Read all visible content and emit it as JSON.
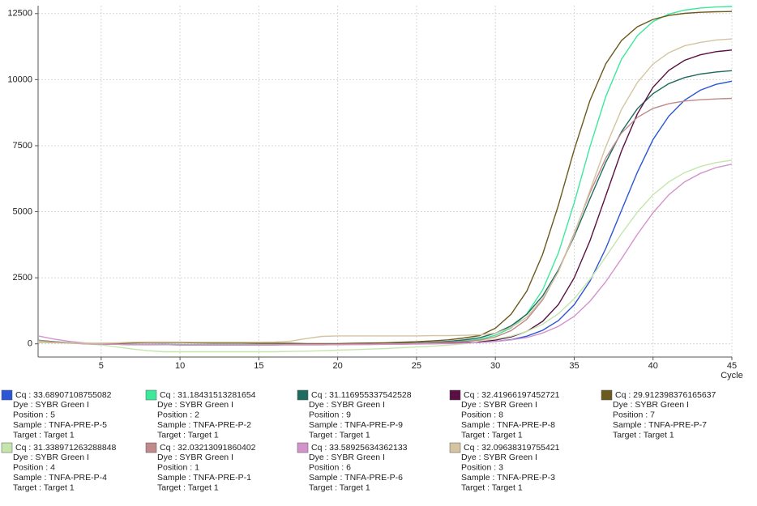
{
  "chart_data": {
    "type": "line",
    "x_label": "Cycle",
    "x": [
      1,
      2,
      3,
      4,
      5,
      6,
      7,
      8,
      9,
      10,
      11,
      12,
      13,
      14,
      15,
      16,
      17,
      18,
      19,
      20,
      21,
      22,
      23,
      24,
      25,
      26,
      27,
      28,
      29,
      30,
      31,
      32,
      33,
      34,
      35,
      36,
      37,
      38,
      39,
      40,
      41,
      42,
      43,
      44,
      45
    ],
    "xlim": [
      1,
      45
    ],
    "xticks": [
      5,
      10,
      15,
      20,
      25,
      30,
      35,
      40,
      45
    ],
    "ylim": [
      -500,
      12800
    ],
    "yticks": [
      0,
      2500,
      5000,
      7500,
      10000,
      12500
    ],
    "grid": true,
    "series": [
      {
        "name": "Cq : 33.68907108755082",
        "dye": "Dye : SYBR Green I",
        "position": "Position : 5",
        "sample": "Sample : TNFA-PRE-P-5",
        "target": "Target : Target 1",
        "color": "#2a56d6",
        "values": [
          120,
          70,
          30,
          10,
          0,
          -10,
          -20,
          -20,
          -30,
          -30,
          -30,
          -30,
          -30,
          -30,
          -30,
          -30,
          -20,
          -20,
          -20,
          -20,
          -20,
          -10,
          -10,
          0,
          0,
          10,
          20,
          30,
          50,
          90,
          160,
          290,
          510,
          880,
          1480,
          2370,
          3610,
          5050,
          6490,
          7730,
          8620,
          9220,
          9600,
          9820,
          9940
        ]
      },
      {
        "name": "Cq : 31.18431513281654",
        "dye": "Dye : SYBR Green I",
        "position": "Position : 2",
        "sample": "Sample : TNFA-PRE-P-2",
        "target": "Target : Target 1",
        "color": "#3ee89a",
        "values": [
          140,
          80,
          40,
          10,
          0,
          -10,
          -10,
          -20,
          -20,
          -20,
          -20,
          -20,
          -20,
          -20,
          -20,
          -20,
          -10,
          -10,
          -10,
          -10,
          0,
          0,
          10,
          20,
          30,
          50,
          80,
          120,
          170,
          320,
          600,
          1140,
          2040,
          3440,
          5340,
          7460,
          9360,
          10770,
          11660,
          12200,
          12480,
          12630,
          12710,
          12750,
          12770
        ]
      },
      {
        "name": "Cq : 31.116955337542528",
        "dye": "Dye : SYBR Green I",
        "position": "Position : 9",
        "sample": "Sample : TNFA-PRE-P-9",
        "target": "Target : Target 1",
        "color": "#1f6b5f",
        "values": [
          130,
          80,
          40,
          10,
          0,
          -10,
          -20,
          -20,
          -20,
          -30,
          -30,
          -30,
          -30,
          -30,
          -30,
          -30,
          -20,
          -20,
          -20,
          -10,
          -10,
          0,
          10,
          20,
          40,
          60,
          90,
          150,
          230,
          400,
          680,
          1120,
          1810,
          2800,
          4070,
          5490,
          6870,
          8030,
          8900,
          9470,
          9850,
          10080,
          10210,
          10290,
          10340
        ]
      },
      {
        "name": "Cq : 32.41966197452721",
        "dye": "Dye : SYBR Green I",
        "position": "Position : 8",
        "sample": "Sample : TNFA-PRE-P-8",
        "target": "Target : Target 1",
        "color": "#5a1044",
        "values": [
          110,
          60,
          30,
          0,
          -10,
          -20,
          -30,
          -30,
          -30,
          -40,
          -40,
          -40,
          -40,
          -40,
          -40,
          -40,
          -30,
          -30,
          -30,
          -30,
          -20,
          -20,
          -10,
          -10,
          0,
          10,
          30,
          50,
          80,
          140,
          260,
          470,
          850,
          1490,
          2500,
          3900,
          5600,
          7300,
          8700,
          9710,
          10350,
          10730,
          10940,
          11060,
          11120
        ]
      },
      {
        "name": "Cq : 29.912398376165637",
        "dye": "Dye : SYBR Green I",
        "position": "Position : 7",
        "sample": "Sample : TNFA-PRE-P-7",
        "target": "Target : Target 1",
        "color": "#6b5a1e",
        "values": [
          100,
          60,
          30,
          10,
          0,
          20,
          40,
          50,
          50,
          50,
          40,
          30,
          30,
          30,
          20,
          20,
          20,
          10,
          10,
          10,
          20,
          30,
          40,
          60,
          80,
          110,
          150,
          220,
          310,
          590,
          1120,
          2000,
          3390,
          5250,
          7350,
          9210,
          10600,
          11480,
          12000,
          12280,
          12430,
          12510,
          12550,
          12570,
          12580
        ]
      },
      {
        "name": "Cq : 31.338971263288848",
        "dye": "Dye : SYBR Green I",
        "position": "Position : 4",
        "sample": "Sample : TNFA-PRE-P-4",
        "target": "Target : Target 1",
        "color": "#c4e6ad",
        "values": [
          100,
          60,
          20,
          0,
          -40,
          -120,
          -200,
          -260,
          -300,
          -300,
          -300,
          -300,
          -300,
          -300,
          -300,
          -300,
          -290,
          -280,
          -260,
          -240,
          -220,
          -200,
          -180,
          -150,
          -120,
          -90,
          -50,
          0,
          110,
          180,
          290,
          470,
          740,
          1140,
          1710,
          2440,
          3290,
          4170,
          4980,
          5640,
          6130,
          6480,
          6710,
          6860,
          6950
        ]
      },
      {
        "name": "Cq : 32.03213091860402",
        "dye": "Dye : SYBR Green I",
        "position": "Position : 1",
        "sample": "Sample : TNFA-PRE-P-1",
        "target": "Target : Target 1",
        "color": "#c08a8a",
        "values": [
          130,
          70,
          30,
          0,
          -10,
          -20,
          -20,
          -20,
          -30,
          -30,
          -30,
          -30,
          -30,
          -30,
          -30,
          -30,
          -20,
          -20,
          -20,
          -20,
          -10,
          -10,
          0,
          10,
          20,
          40,
          60,
          90,
          140,
          260,
          500,
          930,
          1660,
          2750,
          4180,
          5720,
          7030,
          7980,
          8570,
          8910,
          9090,
          9190,
          9240,
          9270,
          9290
        ]
      },
      {
        "name": "Cq : 33.58925634362133",
        "dye": "Dye : SYBR Green I",
        "position": "Position : 6",
        "sample": "Sample : TNFA-PRE-P-6",
        "target": "Target : Target 1",
        "color": "#d394cc",
        "values": [
          300,
          180,
          90,
          30,
          0,
          -20,
          -30,
          -30,
          -30,
          -40,
          -40,
          -40,
          -40,
          -40,
          -40,
          -40,
          -40,
          -40,
          -40,
          -30,
          -30,
          -30,
          -20,
          -20,
          -10,
          0,
          10,
          30,
          50,
          90,
          150,
          240,
          410,
          660,
          1040,
          1610,
          2350,
          3220,
          4140,
          4960,
          5640,
          6130,
          6450,
          6670,
          6800
        ]
      },
      {
        "name": "Cq : 32.09638319755421",
        "dye": "Dye : SYBR Green I",
        "position": "Position : 3",
        "sample": "Sample : TNFA-PRE-P-3",
        "target": "Target : Target 1",
        "color": "#d4c4a2",
        "values": [
          50,
          40,
          30,
          20,
          30,
          40,
          60,
          70,
          70,
          70,
          60,
          60,
          60,
          60,
          60,
          70,
          100,
          200,
          280,
          300,
          300,
          300,
          300,
          300,
          300,
          310,
          310,
          320,
          340,
          400,
          620,
          1010,
          1710,
          2730,
          4140,
          5800,
          7460,
          8870,
          9890,
          10590,
          11020,
          11280,
          11410,
          11500,
          11540
        ]
      }
    ]
  }
}
